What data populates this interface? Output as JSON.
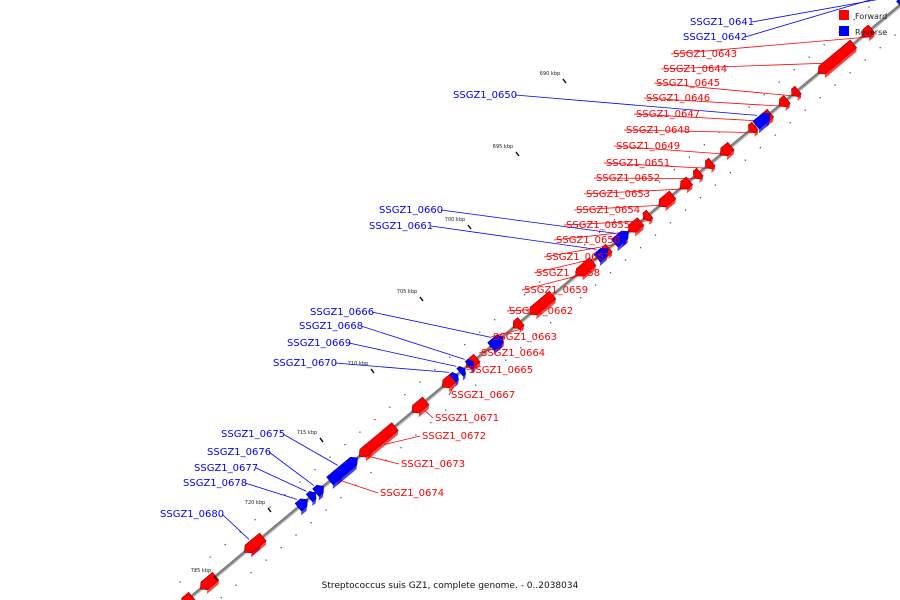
{
  "diagram": {
    "type": "linear-genome-map",
    "caption": "Streptococcus suis GZ1, complete genome. - 0..2038034",
    "colors": {
      "forward": "#ff0000",
      "reverse": "#0000ff",
      "backbone": "#808080",
      "leader": "#000000"
    },
    "legend": [
      {
        "label": "Forward",
        "strand": "forward"
      },
      {
        "label": "Reverse",
        "strand": "reverse"
      }
    ],
    "ticks": [
      "690 kbp",
      "695 kbp",
      "700 kbp",
      "705 kbp",
      "710 kbp",
      "715 kbp",
      "720 kbp",
      "725 kbp"
    ],
    "genes": [
      {
        "id": "SSGZ1_0641",
        "strand": "reverse"
      },
      {
        "id": "SSGZ1_0642",
        "strand": "reverse"
      },
      {
        "id": "SSGZ1_0643",
        "strand": "forward"
      },
      {
        "id": "SSGZ1_0644",
        "strand": "forward"
      },
      {
        "id": "SSGZ1_0645",
        "strand": "forward"
      },
      {
        "id": "SSGZ1_0646",
        "strand": "forward"
      },
      {
        "id": "SSGZ1_0647",
        "strand": "forward"
      },
      {
        "id": "SSGZ1_0648",
        "strand": "forward"
      },
      {
        "id": "SSGZ1_0649",
        "strand": "forward"
      },
      {
        "id": "SSGZ1_0650",
        "strand": "reverse"
      },
      {
        "id": "SSGZ1_0651",
        "strand": "forward"
      },
      {
        "id": "SSGZ1_0652",
        "strand": "forward"
      },
      {
        "id": "SSGZ1_0653",
        "strand": "forward"
      },
      {
        "id": "SSGZ1_0654",
        "strand": "forward"
      },
      {
        "id": "SSGZ1_0655",
        "strand": "forward"
      },
      {
        "id": "SSGZ1_0656",
        "strand": "forward"
      },
      {
        "id": "SSGZ1_0657",
        "strand": "forward"
      },
      {
        "id": "SSGZ1_0658",
        "strand": "forward"
      },
      {
        "id": "SSGZ1_0659",
        "strand": "forward"
      },
      {
        "id": "SSGZ1_0660",
        "strand": "reverse"
      },
      {
        "id": "SSGZ1_0661",
        "strand": "reverse"
      },
      {
        "id": "SSGZ1_0662",
        "strand": "forward"
      },
      {
        "id": "SSGZ1_0663",
        "strand": "forward"
      },
      {
        "id": "SSGZ1_0664",
        "strand": "forward"
      },
      {
        "id": "SSGZ1_0665",
        "strand": "forward"
      },
      {
        "id": "SSGZ1_0666",
        "strand": "reverse"
      },
      {
        "id": "SSGZ1_0667",
        "strand": "forward"
      },
      {
        "id": "SSGZ1_0668",
        "strand": "reverse"
      },
      {
        "id": "SSGZ1_0669",
        "strand": "reverse"
      },
      {
        "id": "SSGZ1_0670",
        "strand": "reverse"
      },
      {
        "id": "SSGZ1_0671",
        "strand": "forward"
      },
      {
        "id": "SSGZ1_0672",
        "strand": "forward"
      },
      {
        "id": "SSGZ1_0673",
        "strand": "forward"
      },
      {
        "id": "SSGZ1_0674",
        "strand": "forward"
      },
      {
        "id": "SSGZ1_0675",
        "strand": "reverse"
      },
      {
        "id": "SSGZ1_0676",
        "strand": "reverse"
      },
      {
        "id": "SSGZ1_0677",
        "strand": "reverse"
      },
      {
        "id": "SSGZ1_0678",
        "strand": "reverse"
      },
      {
        "id": "SSGZ1_0680",
        "strand": "reverse"
      }
    ]
  }
}
